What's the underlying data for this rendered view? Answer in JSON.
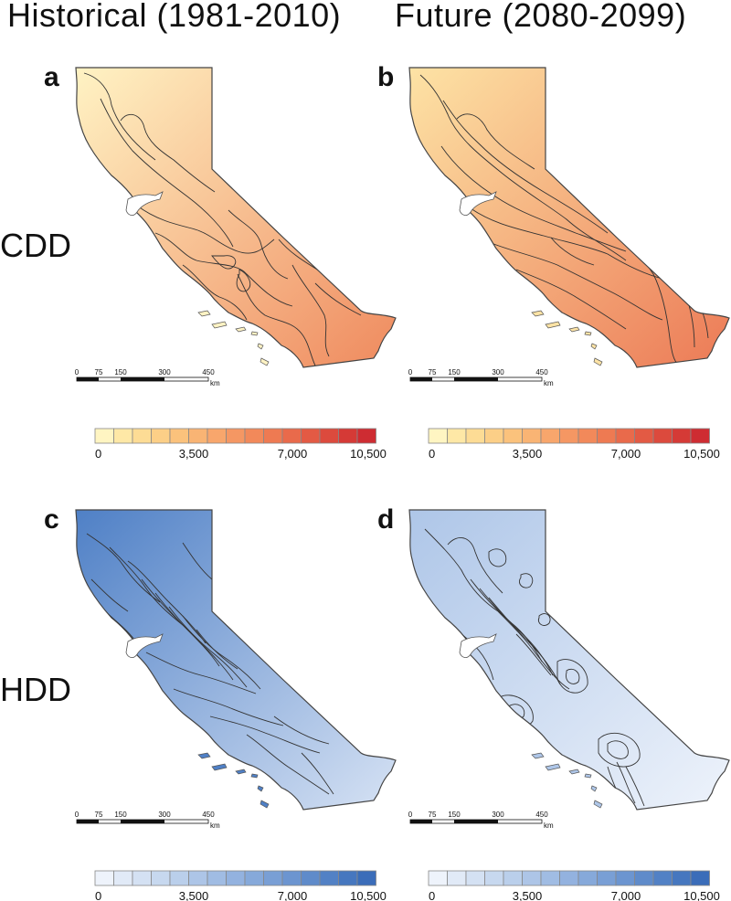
{
  "columns": [
    "Historical (1981-2010)",
    "Future (2080-2099)"
  ],
  "rows": [
    "CDD",
    "HDD"
  ],
  "panels": [
    {
      "letter": "a",
      "variable": "CDD",
      "period": "Historical (1981-2010)"
    },
    {
      "letter": "b",
      "variable": "CDD",
      "period": "Future (2080-2099)"
    },
    {
      "letter": "c",
      "variable": "HDD",
      "period": "Historical (1981-2010)"
    },
    {
      "letter": "d",
      "variable": "HDD",
      "period": "Future (2080-2099)"
    }
  ],
  "scale_bar": {
    "ticks": [
      "0",
      "75",
      "150",
      "300",
      "450"
    ],
    "unit": "km"
  },
  "legend": {
    "tick_labels": [
      "0",
      "3,500",
      "7,000",
      "10,500"
    ],
    "cdd_colors": [
      "#fff5c2",
      "#fee8a6",
      "#fddc95",
      "#fccf87",
      "#fbc27c",
      "#f9b474",
      "#f8a66c",
      "#f59763",
      "#f2895a",
      "#ee7a52",
      "#e96a4b",
      "#e35a44",
      "#dc4a3d",
      "#d53a36",
      "#ce2c32"
    ],
    "hdd_colors": [
      "#eef3fb",
      "#e1eaf7",
      "#d4e1f3",
      "#c7d8ef",
      "#bacfeb",
      "#adc5e7",
      "#a0bce3",
      "#93b2df",
      "#86a9da",
      "#799fd5",
      "#6c95d0",
      "#5f8bca",
      "#5281c5",
      "#4677bf",
      "#3b6db9"
    ]
  }
}
